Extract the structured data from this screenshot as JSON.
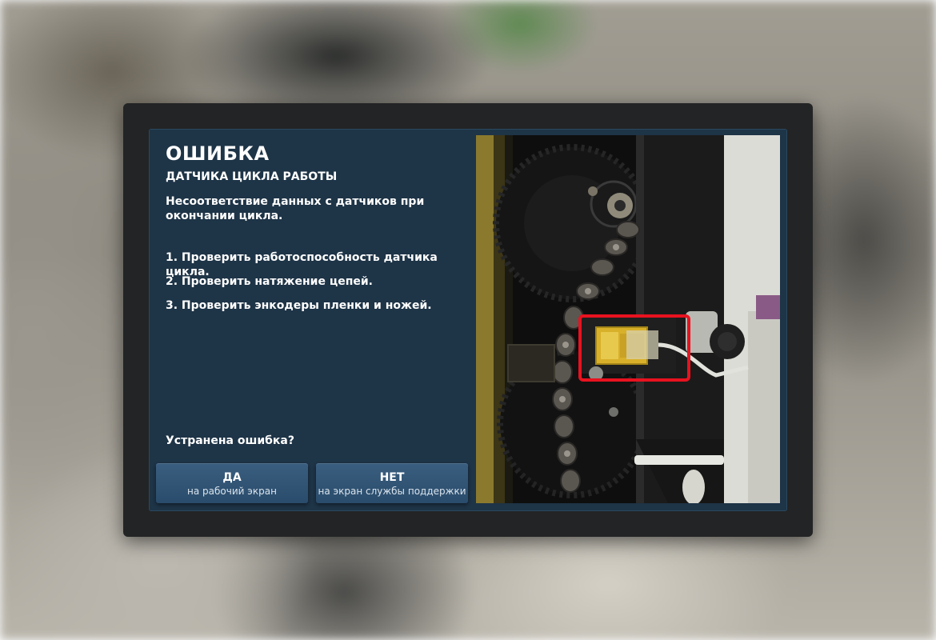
{
  "dialog": {
    "title": "ОШИБКА",
    "subtitle": "ДАТЧИКА ЦИКЛА РАБОТЫ",
    "description": "Несоответствие данных с датчиков при окончании цикла.",
    "steps": [
      "1. Проверить работоспособность датчика цикла.",
      "2. Проверить натяжение цепей.",
      "3. Проверить энкодеры пленки и ножей."
    ],
    "question": "Устранена ошибка?"
  },
  "buttons": {
    "yes": {
      "label": "ДА",
      "sublabel": "на рабочий экран"
    },
    "no": {
      "label": "НЕТ",
      "sublabel": "на экран службы поддержки"
    }
  },
  "photo": {
    "subject": "cycle-sensor-mounting-photo",
    "highlight_color": "#e8121f"
  },
  "colors": {
    "screen_background": "#1e3447",
    "button_background": "#2f5373",
    "bezel": "#232425"
  }
}
